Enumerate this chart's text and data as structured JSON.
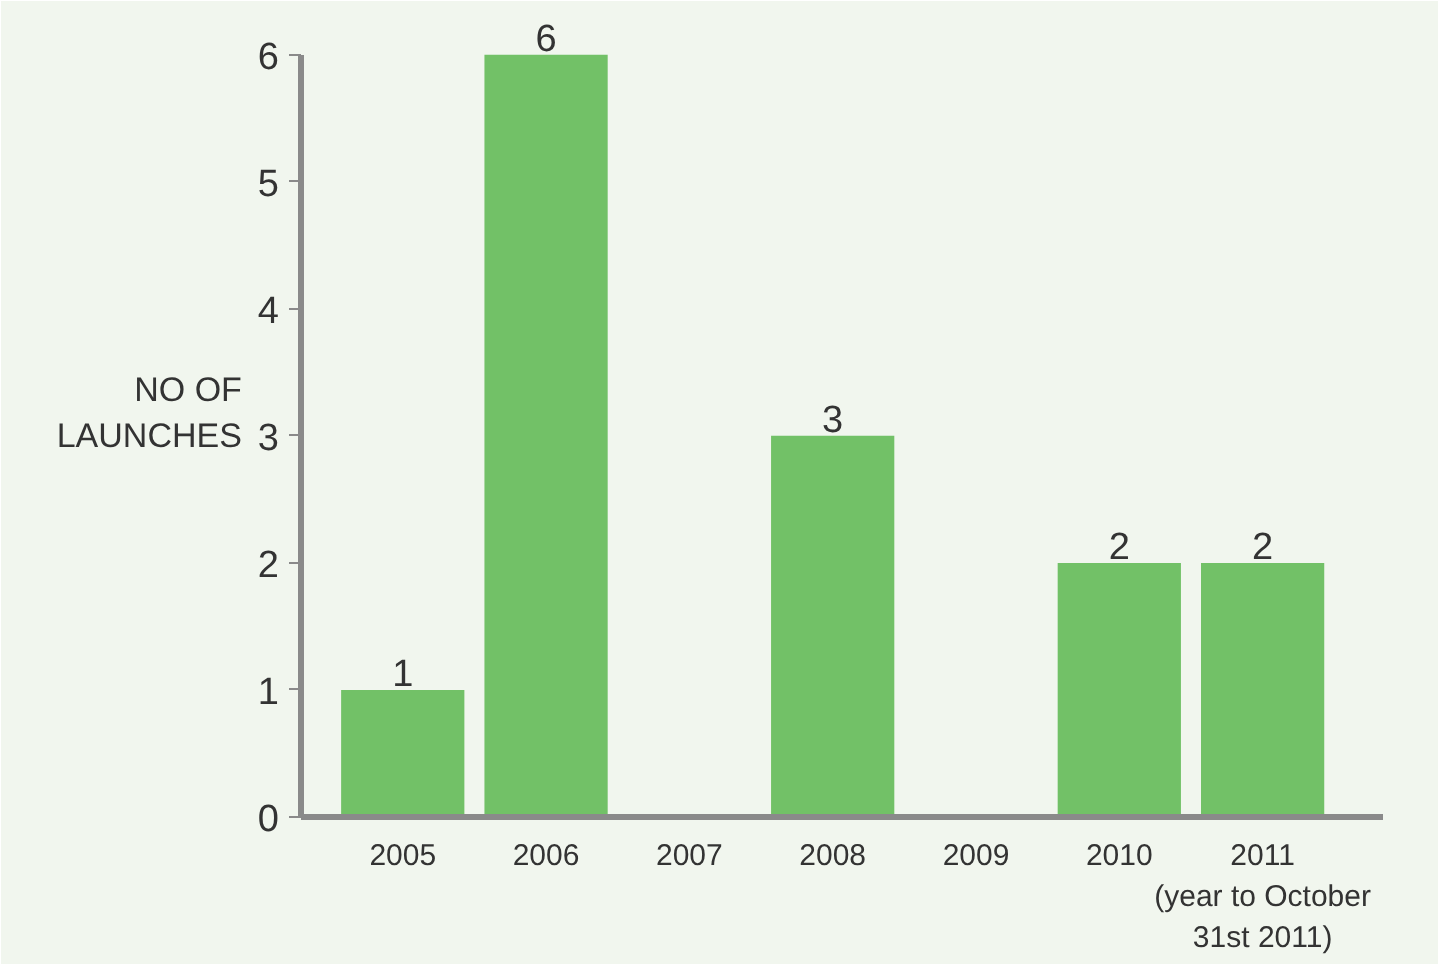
{
  "chart_data": {
    "type": "bar",
    "categories": [
      "2005",
      "2006",
      "2007",
      "2008",
      "2009",
      "2010",
      "2011\n(year to October\n31st 2011)"
    ],
    "values": [
      1,
      6,
      0,
      3,
      0,
      2,
      2
    ],
    "value_labels": [
      "1",
      "6",
      null,
      "3",
      null,
      "2",
      "2"
    ],
    "color": "#72c167",
    "ylabel": "NO OF\nLAUNCHES",
    "ylim": [
      0,
      6
    ],
    "yticks": [
      0,
      1,
      2,
      3,
      4,
      5,
      6
    ],
    "grid": false
  }
}
